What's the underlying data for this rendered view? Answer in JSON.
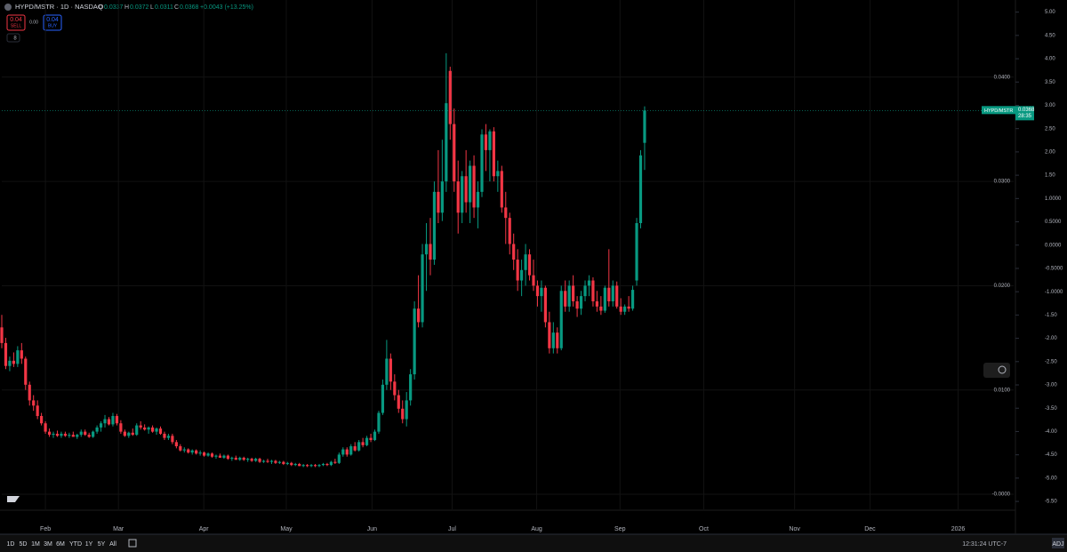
{
  "header": {
    "symbol": "HYPD/MSTR · 1D · NASDAQ",
    "open_label": "O",
    "open": 0.0337,
    "high_label": "H",
    "high": 0.0372,
    "low_label": "L",
    "low": 0.0311,
    "close_label": "C",
    "close": 0.0368,
    "change": "+0.0043 (+13.25%)",
    "sell_price": 0.04,
    "sell_label": "SELL",
    "spread": "0.00",
    "buy_price": 0.04,
    "buy_label": "BUY",
    "indicators": 8
  },
  "chart_data": {
    "type": "candlestick",
    "up_color": "#089981",
    "down_color": "#f23645",
    "xlim": [
      0,
      255
    ],
    "xticks": [
      {
        "value": 11,
        "label": "Feb"
      },
      {
        "value": 29.4,
        "label": "Mar"
      },
      {
        "value": 50.9,
        "label": "Apr"
      },
      {
        "value": 71.7,
        "label": "May"
      },
      {
        "value": 93.3,
        "label": "Jun"
      },
      {
        "value": 113.5,
        "label": "Jul"
      },
      {
        "value": 134.8,
        "label": "Aug"
      },
      {
        "value": 155.8,
        "label": "Sep"
      },
      {
        "value": 176.9,
        "label": "Oct"
      },
      {
        "value": 199.8,
        "label": "Nov"
      },
      {
        "value": 218.8,
        "label": "Dec"
      },
      {
        "value": 241,
        "label": "2026"
      }
    ],
    "ylim": [
      -0.00145,
      0.0474
    ],
    "yticks": [
      {
        "value": 0.04,
        "label": "0.0400"
      },
      {
        "value": 0.03,
        "label": "0.0300"
      },
      {
        "value": 0.02,
        "label": "0.0200"
      },
      {
        "value": 0.01,
        "label": "0.0100"
      },
      {
        "value": 0,
        "label": "-0.0000"
      }
    ],
    "y2lim": [
      -5.67,
      5.26
    ],
    "y2ticks": [
      {
        "value": 5,
        "label": "5.00"
      },
      {
        "value": 4.5,
        "label": "4.50"
      },
      {
        "value": 4,
        "label": "4.00"
      },
      {
        "value": 3.5,
        "label": "3.50"
      },
      {
        "value": 3,
        "label": "3.00"
      },
      {
        "value": 2.5,
        "label": "2.50"
      },
      {
        "value": 2,
        "label": "2.00"
      },
      {
        "value": 1.5,
        "label": "1.50"
      },
      {
        "value": 1,
        "label": "1.0000"
      },
      {
        "value": 0.5,
        "label": "0.5000"
      },
      {
        "value": 0,
        "label": "0.0000"
      },
      {
        "value": -0.5,
        "label": "-0.5000"
      },
      {
        "value": -1,
        "label": "-1.0000"
      },
      {
        "value": -1.5,
        "label": "-1.50"
      },
      {
        "value": -2,
        "label": "-2.00"
      },
      {
        "value": -2.5,
        "label": "-2.50"
      },
      {
        "value": -3,
        "label": "-3.00"
      },
      {
        "value": -3.5,
        "label": "-3.50"
      },
      {
        "value": -4,
        "label": "-4.00"
      },
      {
        "value": -4.5,
        "label": "-4.50"
      },
      {
        "value": -5,
        "label": "-5.00"
      },
      {
        "value": -5.5,
        "label": "-5.50"
      }
    ],
    "last_price": 0.0368,
    "badge_name": "HYPD/MSTR",
    "countdown": "28:35",
    "ohlc": [
      [
        0.016,
        0.0172,
        0.014,
        0.0145
      ],
      [
        0.0145,
        0.015,
        0.012,
        0.0123
      ],
      [
        0.0123,
        0.0132,
        0.0118,
        0.0128
      ],
      [
        0.0128,
        0.0136,
        0.0122,
        0.0125
      ],
      [
        0.0125,
        0.0142,
        0.0122,
        0.0138
      ],
      [
        0.0138,
        0.0145,
        0.0125,
        0.013
      ],
      [
        0.013,
        0.0132,
        0.01,
        0.0105
      ],
      [
        0.0105,
        0.0108,
        0.0085,
        0.009
      ],
      [
        0.009,
        0.0095,
        0.008,
        0.0085
      ],
      [
        0.0085,
        0.009,
        0.0072,
        0.0075
      ],
      [
        0.0075,
        0.0078,
        0.0066,
        0.0068
      ],
      [
        0.0068,
        0.007,
        0.0058,
        0.006
      ],
      [
        0.006,
        0.0063,
        0.0055,
        0.0057
      ],
      [
        0.0057,
        0.006,
        0.0054,
        0.0058
      ],
      [
        0.0058,
        0.0061,
        0.0055,
        0.0056
      ],
      [
        0.0056,
        0.006,
        0.0054,
        0.0058
      ],
      [
        0.0058,
        0.006,
        0.0055,
        0.0056
      ],
      [
        0.0056,
        0.0059,
        0.0054,
        0.0057
      ],
      [
        0.0057,
        0.006,
        0.0055,
        0.0055
      ],
      [
        0.0055,
        0.0058,
        0.0053,
        0.0057
      ],
      [
        0.0057,
        0.0062,
        0.0055,
        0.006
      ],
      [
        0.006,
        0.0062,
        0.0056,
        0.0057
      ],
      [
        0.0057,
        0.0059,
        0.0054,
        0.0055
      ],
      [
        0.0055,
        0.0061,
        0.0054,
        0.006
      ],
      [
        0.006,
        0.0066,
        0.0058,
        0.0064
      ],
      [
        0.0064,
        0.007,
        0.006,
        0.0068
      ],
      [
        0.0068,
        0.0076,
        0.0064,
        0.0072
      ],
      [
        0.0072,
        0.0074,
        0.0066,
        0.0067
      ],
      [
        0.0067,
        0.0078,
        0.0065,
        0.0075
      ],
      [
        0.0075,
        0.0077,
        0.0066,
        0.0068
      ],
      [
        0.0068,
        0.0071,
        0.0058,
        0.006
      ],
      [
        0.006,
        0.0062,
        0.0055,
        0.0056
      ],
      [
        0.0056,
        0.006,
        0.0054,
        0.0059
      ],
      [
        0.0059,
        0.0063,
        0.0056,
        0.0057
      ],
      [
        0.0057,
        0.0068,
        0.0056,
        0.0066
      ],
      [
        0.0066,
        0.007,
        0.0062,
        0.0064
      ],
      [
        0.0064,
        0.0067,
        0.0061,
        0.0062
      ],
      [
        0.0062,
        0.0065,
        0.0058,
        0.0064
      ],
      [
        0.0064,
        0.0066,
        0.0059,
        0.006
      ],
      [
        0.006,
        0.0064,
        0.0057,
        0.0063
      ],
      [
        0.0063,
        0.0065,
        0.0057,
        0.0058
      ],
      [
        0.0058,
        0.006,
        0.0052,
        0.0054
      ],
      [
        0.0054,
        0.0058,
        0.0052,
        0.0056
      ],
      [
        0.0056,
        0.0058,
        0.0048,
        0.005
      ],
      [
        0.005,
        0.0052,
        0.0044,
        0.0046
      ],
      [
        0.0046,
        0.0048,
        0.0041,
        0.0042
      ],
      [
        0.0042,
        0.0045,
        0.004,
        0.0043
      ],
      [
        0.0043,
        0.0044,
        0.0039,
        0.004
      ],
      [
        0.004,
        0.0043,
        0.0038,
        0.0042
      ],
      [
        0.0042,
        0.0043,
        0.0038,
        0.0039
      ],
      [
        0.0039,
        0.0042,
        0.0037,
        0.004
      ],
      [
        0.004,
        0.0041,
        0.0036,
        0.0037
      ],
      [
        0.0037,
        0.004,
        0.0036,
        0.0039
      ],
      [
        0.0039,
        0.004,
        0.0035,
        0.0036
      ],
      [
        0.0036,
        0.0038,
        0.0034,
        0.0037
      ],
      [
        0.0037,
        0.0039,
        0.0035,
        0.0035
      ],
      [
        0.0035,
        0.0038,
        0.0034,
        0.0037
      ],
      [
        0.0037,
        0.0038,
        0.0033,
        0.0034
      ],
      [
        0.0034,
        0.0036,
        0.0032,
        0.0035
      ],
      [
        0.0035,
        0.0037,
        0.0033,
        0.0033
      ],
      [
        0.0033,
        0.0036,
        0.0032,
        0.0035
      ],
      [
        0.0035,
        0.0036,
        0.0032,
        0.0033
      ],
      [
        0.0033,
        0.0035,
        0.0031,
        0.0034
      ],
      [
        0.0034,
        0.0035,
        0.0031,
        0.0032
      ],
      [
        0.0032,
        0.0035,
        0.0031,
        0.0034
      ],
      [
        0.0034,
        0.0035,
        0.003,
        0.0031
      ],
      [
        0.0031,
        0.0033,
        0.003,
        0.0032
      ],
      [
        0.0032,
        0.0034,
        0.003,
        0.0031
      ],
      [
        0.0031,
        0.0033,
        0.0029,
        0.0032
      ],
      [
        0.0032,
        0.0033,
        0.0029,
        0.003
      ],
      [
        0.003,
        0.0032,
        0.0029,
        0.0031
      ],
      [
        0.0031,
        0.0032,
        0.0028,
        0.0029
      ],
      [
        0.0029,
        0.0031,
        0.0028,
        0.003
      ],
      [
        0.003,
        0.0031,
        0.0027,
        0.0028
      ],
      [
        0.0028,
        0.003,
        0.0027,
        0.0029
      ],
      [
        0.0029,
        0.003,
        0.0027,
        0.0027
      ],
      [
        0.0027,
        0.0029,
        0.0026,
        0.0028
      ],
      [
        0.0028,
        0.0029,
        0.0026,
        0.0027
      ],
      [
        0.0027,
        0.0029,
        0.0026,
        0.0028
      ],
      [
        0.0028,
        0.0029,
        0.0026,
        0.0027
      ],
      [
        0.0027,
        0.0029,
        0.0026,
        0.0028
      ],
      [
        0.0028,
        0.003,
        0.0027,
        0.0029
      ],
      [
        0.0029,
        0.003,
        0.0027,
        0.0028
      ],
      [
        0.0028,
        0.0032,
        0.0027,
        0.0031
      ],
      [
        0.0031,
        0.0034,
        0.0029,
        0.003
      ],
      [
        0.003,
        0.004,
        0.0029,
        0.0038
      ],
      [
        0.0038,
        0.0045,
        0.0036,
        0.0043
      ],
      [
        0.0043,
        0.0045,
        0.0036,
        0.0038
      ],
      [
        0.0038,
        0.0048,
        0.0037,
        0.0046
      ],
      [
        0.0046,
        0.005,
        0.0041,
        0.0042
      ],
      [
        0.0042,
        0.0052,
        0.0041,
        0.005
      ],
      [
        0.005,
        0.0054,
        0.0045,
        0.0047
      ],
      [
        0.0047,
        0.0056,
        0.0046,
        0.0054
      ],
      [
        0.0054,
        0.0058,
        0.005,
        0.0052
      ],
      [
        0.0052,
        0.0062,
        0.0051,
        0.006
      ],
      [
        0.006,
        0.008,
        0.0058,
        0.0078
      ],
      [
        0.0078,
        0.011,
        0.0076,
        0.0105
      ],
      [
        0.0105,
        0.0148,
        0.01,
        0.013
      ],
      [
        0.013,
        0.0135,
        0.01,
        0.0108
      ],
      [
        0.0108,
        0.0115,
        0.009,
        0.0095
      ],
      [
        0.0095,
        0.01,
        0.0078,
        0.0082
      ],
      [
        0.0082,
        0.009,
        0.0068,
        0.0072
      ],
      [
        0.0072,
        0.0098,
        0.0065,
        0.009
      ],
      [
        0.009,
        0.012,
        0.0085,
        0.0115
      ],
      [
        0.0115,
        0.0185,
        0.011,
        0.0178
      ],
      [
        0.0178,
        0.021,
        0.016,
        0.0165
      ],
      [
        0.0165,
        0.024,
        0.016,
        0.023
      ],
      [
        0.023,
        0.026,
        0.0195,
        0.024
      ],
      [
        0.024,
        0.0265,
        0.021,
        0.0225
      ],
      [
        0.0225,
        0.03,
        0.022,
        0.029
      ],
      [
        0.029,
        0.033,
        0.026,
        0.027
      ],
      [
        0.027,
        0.034,
        0.0262,
        0.03
      ],
      [
        0.03,
        0.0423,
        0.029,
        0.0375
      ],
      [
        0.0406,
        0.041,
        0.034,
        0.0355
      ],
      [
        0.0355,
        0.037,
        0.029,
        0.03
      ],
      [
        0.03,
        0.032,
        0.025,
        0.027
      ],
      [
        0.027,
        0.031,
        0.026,
        0.0305
      ],
      [
        0.0305,
        0.033,
        0.027,
        0.028
      ],
      [
        0.028,
        0.032,
        0.026,
        0.0315
      ],
      [
        0.0315,
        0.0325,
        0.0265,
        0.0275
      ],
      [
        0.0275,
        0.03,
        0.0255,
        0.029
      ],
      [
        0.029,
        0.035,
        0.0285,
        0.0345
      ],
      [
        0.0345,
        0.0355,
        0.031,
        0.033
      ],
      [
        0.033,
        0.035,
        0.03,
        0.0348
      ],
      [
        0.0348,
        0.0352,
        0.03,
        0.0305
      ],
      [
        0.0305,
        0.032,
        0.029,
        0.031
      ],
      [
        0.031,
        0.0315,
        0.027,
        0.0275
      ],
      [
        0.0275,
        0.029,
        0.024,
        0.0265
      ],
      [
        0.0265,
        0.027,
        0.023,
        0.024
      ],
      [
        0.024,
        0.025,
        0.0215,
        0.0225
      ],
      [
        0.0225,
        0.0235,
        0.0195,
        0.0205
      ],
      [
        0.0205,
        0.0225,
        0.019,
        0.0215
      ],
      [
        0.0215,
        0.024,
        0.02,
        0.023
      ],
      [
        0.023,
        0.0235,
        0.0205,
        0.021
      ],
      [
        0.021,
        0.0225,
        0.0195,
        0.02
      ],
      [
        0.02,
        0.0205,
        0.018,
        0.019
      ],
      [
        0.019,
        0.0205,
        0.0175,
        0.0198
      ],
      [
        0.0198,
        0.02,
        0.016,
        0.0165
      ],
      [
        0.0165,
        0.0175,
        0.0135,
        0.014
      ],
      [
        0.014,
        0.0165,
        0.0135,
        0.0155
      ],
      [
        0.0155,
        0.016,
        0.0135,
        0.014
      ],
      [
        0.014,
        0.02,
        0.0138,
        0.0195
      ],
      [
        0.0195,
        0.0205,
        0.0175,
        0.018
      ],
      [
        0.018,
        0.0205,
        0.0175,
        0.02
      ],
      [
        0.02,
        0.021,
        0.018,
        0.0185
      ],
      [
        0.0185,
        0.019,
        0.017,
        0.0178
      ],
      [
        0.0178,
        0.0195,
        0.0172,
        0.019
      ],
      [
        0.019,
        0.0205,
        0.0185,
        0.02
      ],
      [
        0.02,
        0.021,
        0.019,
        0.0205
      ],
      [
        0.0205,
        0.0208,
        0.018,
        0.0185
      ],
      [
        0.0185,
        0.0195,
        0.0175,
        0.018
      ],
      [
        0.018,
        0.019,
        0.0172,
        0.0176
      ],
      [
        0.0176,
        0.02,
        0.0174,
        0.0198
      ],
      [
        0.0198,
        0.0235,
        0.018,
        0.0185
      ],
      [
        0.0185,
        0.0205,
        0.018,
        0.02
      ],
      [
        0.02,
        0.0204,
        0.0178,
        0.018
      ],
      [
        0.018,
        0.0188,
        0.0172,
        0.0175
      ],
      [
        0.0175,
        0.0182,
        0.0172,
        0.018
      ],
      [
        0.018,
        0.019,
        0.0175,
        0.0178
      ],
      [
        0.0178,
        0.02,
        0.0176,
        0.0196
      ],
      [
        0.0205,
        0.0265,
        0.02,
        0.026
      ],
      [
        0.026,
        0.033,
        0.0255,
        0.0325
      ],
      [
        0.0337,
        0.0372,
        0.0311,
        0.0368
      ]
    ]
  },
  "toolbar": {
    "ranges": [
      "1D",
      "5D",
      "1M",
      "3M",
      "6M",
      "YTD",
      "1Y",
      "5Y",
      "All"
    ],
    "clock": "12:31:24 UTC-7",
    "adj": "ADJ"
  }
}
